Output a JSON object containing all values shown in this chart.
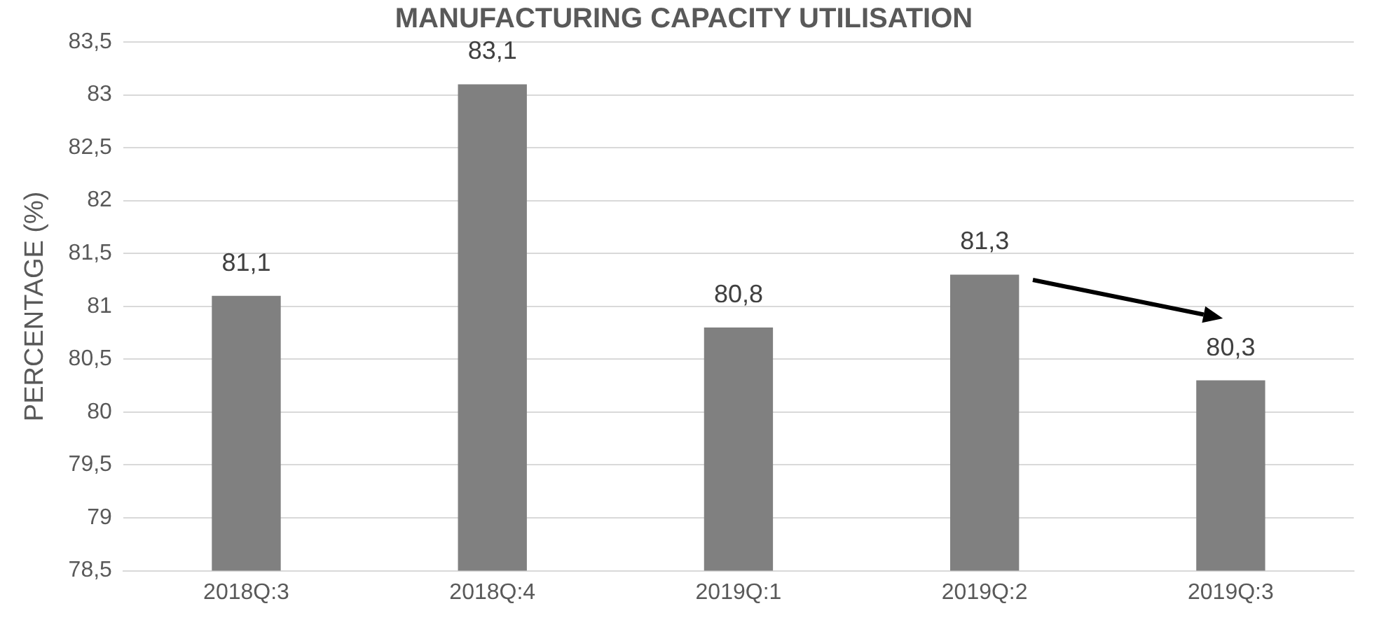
{
  "chart_data": {
    "type": "bar",
    "title": "MANUFACTURING CAPACITY UTILISATION",
    "ylabel": "PERCENTAGE (%)",
    "categories": [
      "2018Q:3",
      "2018Q:4",
      "2019Q:1",
      "2019Q:2",
      "2019Q:3"
    ],
    "values": [
      81.1,
      83.1,
      80.8,
      81.3,
      80.3
    ],
    "color": "#808080",
    "value_labels": [
      "81,1",
      "83,1",
      "80,8",
      "81,3",
      "80,3"
    ],
    "ylim": [
      78.5,
      83.5
    ],
    "yticks": [
      {
        "value": 78.5,
        "label": "78,5"
      },
      79,
      {
        "value": 79.5,
        "label": "79,5"
      },
      80,
      {
        "value": 80.5,
        "label": "80,5"
      },
      81,
      {
        "value": 81.5,
        "label": "81,5"
      },
      82,
      {
        "value": 82.5,
        "label": "82,5"
      },
      83,
      {
        "value": 83.5,
        "label": "83,5"
      }
    ],
    "grid": "y",
    "legend": false
  }
}
